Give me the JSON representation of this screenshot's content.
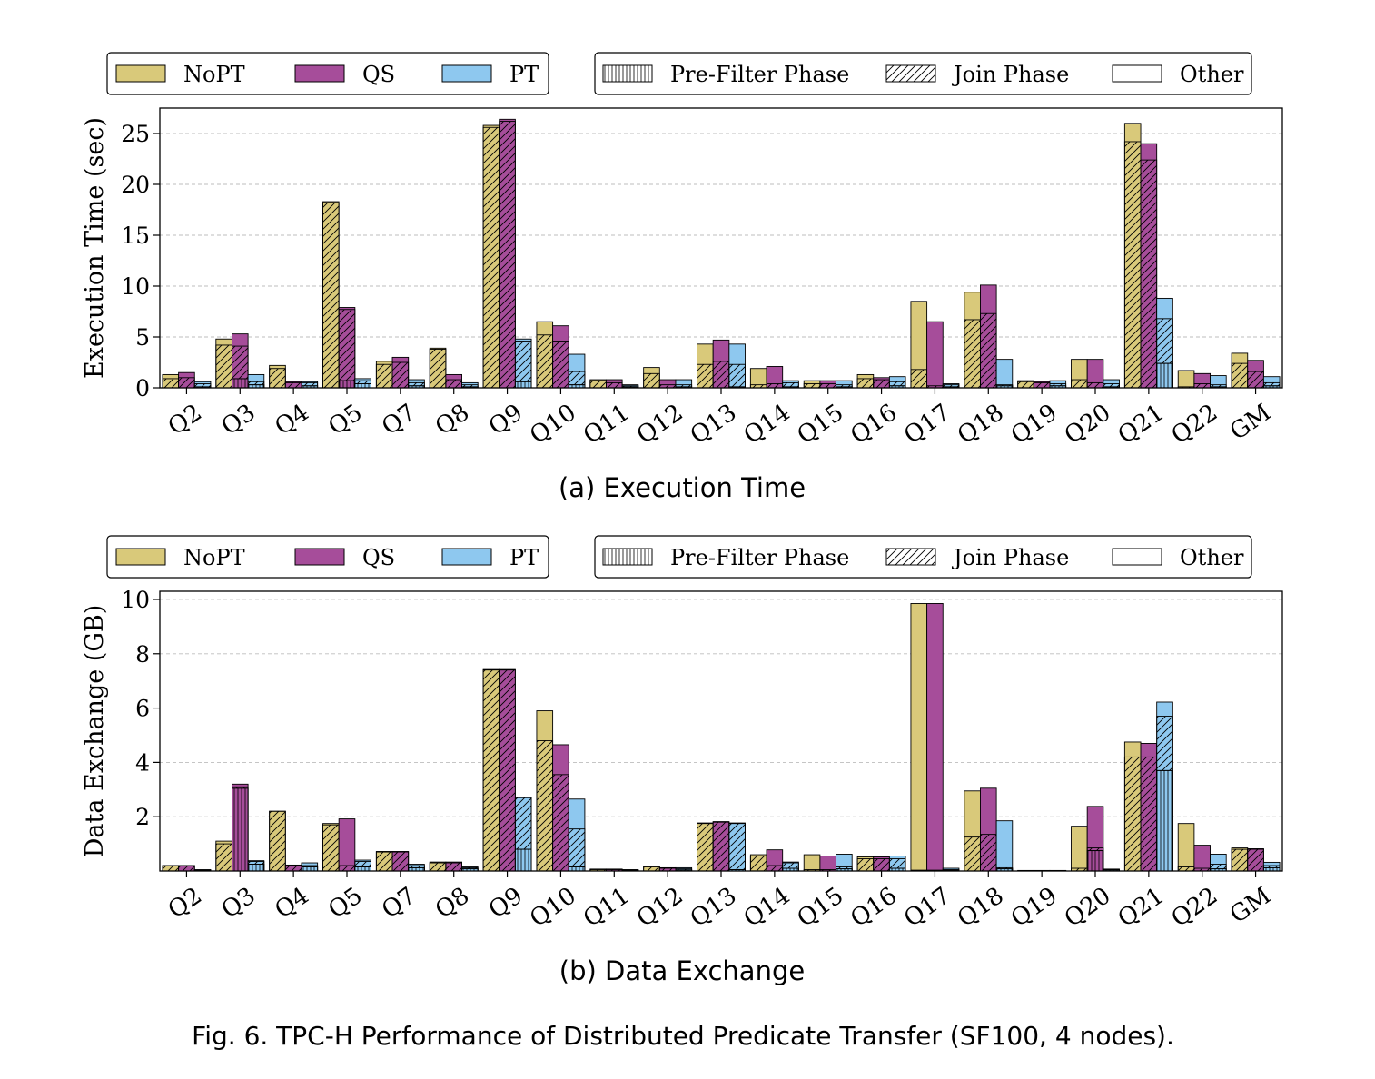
{
  "colors": {
    "NoPT": "#d9c97a",
    "QS": "#a64d9a",
    "PT": "#8ec8ef"
  },
  "legend": {
    "systems": [
      "NoPT",
      "QS",
      "PT"
    ],
    "phases": [
      "Pre-Filter Phase",
      "Join Phase",
      "Other"
    ]
  },
  "figure_caption": "Fig. 6.  TPC-H Performance of Distributed Predicate Transfer (SF100, 4 nodes).",
  "chart_data": [
    {
      "type": "bar",
      "stacked": true,
      "subcaption": "(a) Execution Time",
      "ylabel": "Execution Time (sec)",
      "ylim": [
        0,
        27.5
      ],
      "yticks": [
        0,
        5,
        10,
        15,
        20,
        25
      ],
      "grid": true,
      "legend_position": "top",
      "categories": [
        "Q2",
        "Q3",
        "Q4",
        "Q5",
        "Q7",
        "Q8",
        "Q9",
        "Q10",
        "Q11",
        "Q12",
        "Q13",
        "Q14",
        "Q15",
        "Q16",
        "Q17",
        "Q18",
        "Q19",
        "Q20",
        "Q21",
        "Q22",
        "GM"
      ],
      "series": [
        {
          "name": "NoPT",
          "prefilter": [
            0,
            0,
            0,
            0,
            0,
            0,
            0,
            0,
            0,
            0,
            0,
            0,
            0,
            0,
            0,
            0,
            0,
            0,
            0,
            0,
            0
          ],
          "join": [
            0.9,
            4.2,
            1.9,
            18.2,
            2.3,
            3.8,
            25.6,
            5.2,
            0.7,
            1.4,
            2.3,
            0.3,
            0.4,
            0.9,
            1.8,
            6.7,
            0.6,
            0.8,
            24.2,
            0.1,
            2.4
          ],
          "total": [
            1.3,
            4.8,
            2.2,
            18.3,
            2.6,
            3.9,
            25.8,
            6.5,
            0.8,
            2.0,
            4.3,
            1.9,
            0.7,
            1.3,
            8.5,
            9.4,
            0.7,
            2.8,
            26.0,
            1.7,
            3.4
          ]
        },
        {
          "name": "QS",
          "prefilter": [
            0,
            0.9,
            0,
            0.7,
            0,
            0,
            0,
            0,
            0,
            0,
            0,
            0,
            0,
            0,
            0,
            0,
            0,
            0,
            0,
            0,
            0
          ],
          "join": [
            1.0,
            4.1,
            0.5,
            7.7,
            2.5,
            0.8,
            26.2,
            4.6,
            0.5,
            0.3,
            2.6,
            0.4,
            0.4,
            0.8,
            0.2,
            7.3,
            0.5,
            0.5,
            22.4,
            0.4,
            1.6
          ],
          "total": [
            1.5,
            5.3,
            0.6,
            7.9,
            3.0,
            1.3,
            26.4,
            6.1,
            0.8,
            0.8,
            4.7,
            2.1,
            0.7,
            1.0,
            6.5,
            10.1,
            0.6,
            2.8,
            24.0,
            1.4,
            2.7
          ]
        },
        {
          "name": "PT",
          "prefilter": [
            0.1,
            0.3,
            0.2,
            0.4,
            0.2,
            0.1,
            0.6,
            0.3,
            0.1,
            0.1,
            0.1,
            0.1,
            0.1,
            0.2,
            0.1,
            0.2,
            0.2,
            0.1,
            2.4,
            0.1,
            0.2
          ],
          "join": [
            0.4,
            0.6,
            0.5,
            0.7,
            0.5,
            0.3,
            4.6,
            1.6,
            0.2,
            0.3,
            2.3,
            0.5,
            0.3,
            0.6,
            0.3,
            0.3,
            0.4,
            0.4,
            6.8,
            0.3,
            0.5
          ],
          "total": [
            0.6,
            1.3,
            0.6,
            0.9,
            0.8,
            0.5,
            4.8,
            3.3,
            0.3,
            0.8,
            4.3,
            0.7,
            0.7,
            1.1,
            0.4,
            2.8,
            0.7,
            0.8,
            8.8,
            1.2,
            1.1
          ]
        }
      ]
    },
    {
      "type": "bar",
      "stacked": true,
      "subcaption": "(b) Data Exchange",
      "ylabel": "Data Exchange (GB)",
      "ylim": [
        0,
        10.3
      ],
      "yticks": [
        2,
        4,
        6,
        8,
        10
      ],
      "grid": true,
      "legend_position": "top",
      "categories": [
        "Q2",
        "Q3",
        "Q4",
        "Q5",
        "Q7",
        "Q8",
        "Q9",
        "Q10",
        "Q11",
        "Q12",
        "Q13",
        "Q14",
        "Q15",
        "Q16",
        "Q17",
        "Q18",
        "Q19",
        "Q20",
        "Q21",
        "Q22",
        "GM"
      ],
      "series": [
        {
          "name": "NoPT",
          "prefilter": [
            0,
            0,
            0,
            0,
            0,
            0,
            0,
            0,
            0,
            0,
            0,
            0,
            0,
            0,
            0,
            0,
            0,
            0,
            0,
            0,
            0
          ],
          "join": [
            0.2,
            1.0,
            2.2,
            1.7,
            0.7,
            0.3,
            7.4,
            4.8,
            0.05,
            0.15,
            1.75,
            0.55,
            0.05,
            0.45,
            0.03,
            1.25,
            0.01,
            0.1,
            4.2,
            0.15,
            0.8
          ],
          "total": [
            0.2,
            1.1,
            2.2,
            1.75,
            0.72,
            0.33,
            7.42,
            5.9,
            0.07,
            0.18,
            1.77,
            0.6,
            0.6,
            0.52,
            9.85,
            2.95,
            0.02,
            1.65,
            4.75,
            1.75,
            0.85
          ]
        },
        {
          "name": "QS",
          "prefilter": [
            0,
            3.05,
            0,
            0,
            0,
            0,
            0,
            0,
            0,
            0,
            0,
            0,
            0,
            0,
            0,
            0,
            0,
            0.75,
            0,
            0,
            0
          ],
          "join": [
            0.2,
            3.1,
            0.2,
            0.2,
            0.7,
            0.3,
            7.4,
            3.55,
            0.05,
            0.1,
            1.8,
            0.2,
            0.05,
            0.45,
            0.03,
            1.35,
            0.01,
            0.85,
            4.2,
            0.1,
            0.8
          ],
          "total": [
            0.2,
            3.2,
            0.22,
            1.92,
            0.72,
            0.33,
            7.42,
            4.65,
            0.07,
            0.12,
            1.82,
            0.78,
            0.55,
            0.52,
            9.85,
            3.05,
            0.02,
            2.38,
            4.7,
            0.95,
            0.82
          ]
        },
        {
          "name": "PT",
          "prefilter": [
            0.02,
            0.25,
            0.15,
            0.15,
            0.12,
            0.08,
            0.8,
            0.15,
            0.02,
            0.04,
            0.05,
            0.1,
            0.08,
            0.1,
            0.03,
            0.08,
            0.01,
            0.04,
            3.7,
            0.08,
            0.12
          ],
          "join": [
            0.03,
            0.35,
            0.2,
            0.35,
            0.2,
            0.12,
            2.7,
            1.55,
            0.04,
            0.08,
            1.75,
            0.3,
            0.15,
            0.45,
            0.05,
            0.12,
            0.01,
            0.05,
            5.7,
            0.25,
            0.2
          ],
          "total": [
            0.05,
            0.38,
            0.3,
            0.4,
            0.25,
            0.15,
            2.72,
            2.65,
            0.05,
            0.12,
            1.77,
            0.33,
            0.62,
            0.55,
            0.1,
            1.85,
            0.02,
            0.07,
            6.22,
            0.62,
            0.32
          ]
        }
      ]
    }
  ]
}
